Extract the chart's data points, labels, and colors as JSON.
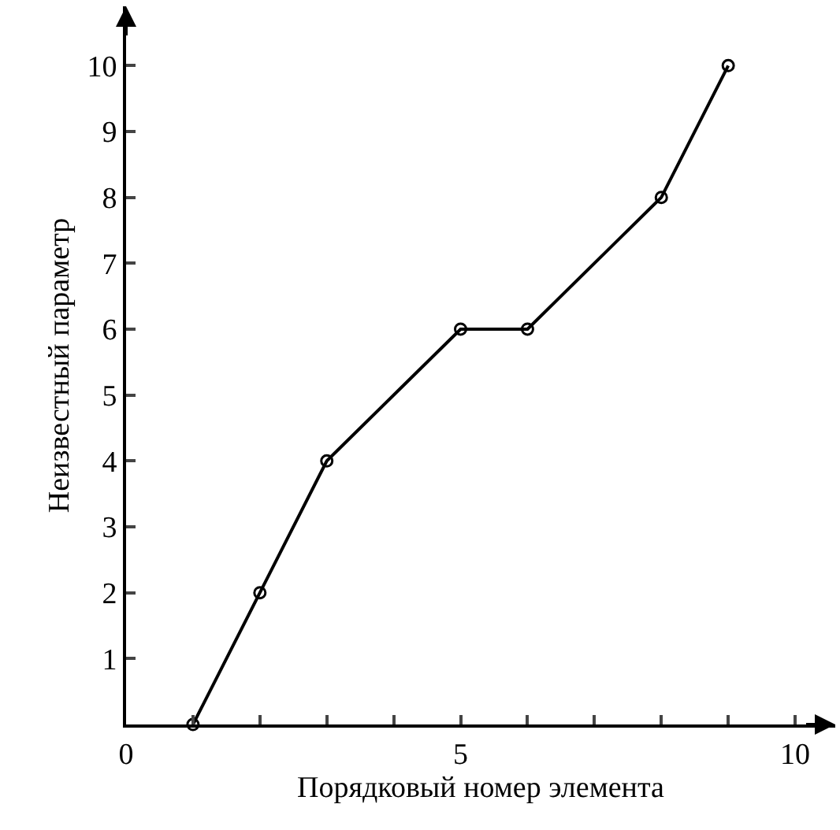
{
  "chart_data": {
    "type": "line",
    "xlabel": "Порядковый номер элемента",
    "ylabel": "Неизвестный параметр",
    "x": [
      1,
      2,
      3,
      5,
      6,
      8,
      9
    ],
    "values": [
      0,
      2,
      4,
      6,
      6,
      8,
      10
    ],
    "color": "#000000",
    "marker": "circle",
    "line_style": "solid",
    "grid": false,
    "xlim": [
      0,
      10.6
    ],
    "xticks": [
      0,
      {
        "value": 1,
        "label": null
      },
      {
        "value": 2,
        "label": null
      },
      {
        "value": 3,
        "label": null
      },
      {
        "value": 4,
        "label": null
      },
      5,
      {
        "value": 6,
        "label": null
      },
      {
        "value": 7,
        "label": null
      },
      {
        "value": 8,
        "label": null
      },
      {
        "value": 9,
        "label": null
      },
      10
    ],
    "ylim": [
      0,
      10.9
    ],
    "yticks": [
      1,
      2,
      3,
      4,
      5,
      6,
      7,
      8,
      9,
      10
    ]
  }
}
